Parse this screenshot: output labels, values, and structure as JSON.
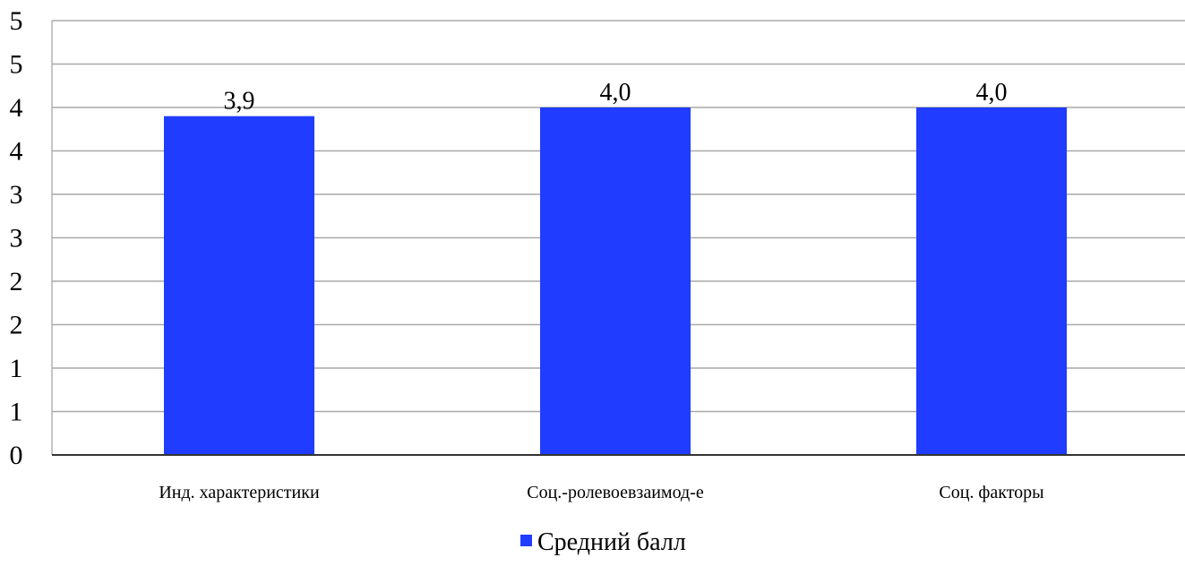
{
  "chart_data": {
    "type": "bar",
    "categories": [
      "Инд. характеристики",
      "Соц.-ролевоевзаимод-е",
      "Соц. факторы"
    ],
    "series": [
      {
        "name": "Средний балл",
        "values": [
          3.9,
          4.0,
          4.0
        ],
        "value_labels": [
          "3,9",
          "4,0",
          "4,0"
        ],
        "color": "#1f3cff"
      }
    ],
    "ylim": [
      0,
      5
    ],
    "y_ticks": [
      0,
      0.5,
      1,
      1.5,
      2,
      2.5,
      3,
      3.5,
      4,
      4.5,
      5
    ],
    "y_tick_labels": [
      "0",
      "1",
      "1",
      "2",
      "2",
      "3",
      "3",
      "4",
      "4",
      "5",
      "5"
    ],
    "grid": true,
    "legend": "bottom",
    "title": "",
    "xlabel": "",
    "ylabel": ""
  }
}
